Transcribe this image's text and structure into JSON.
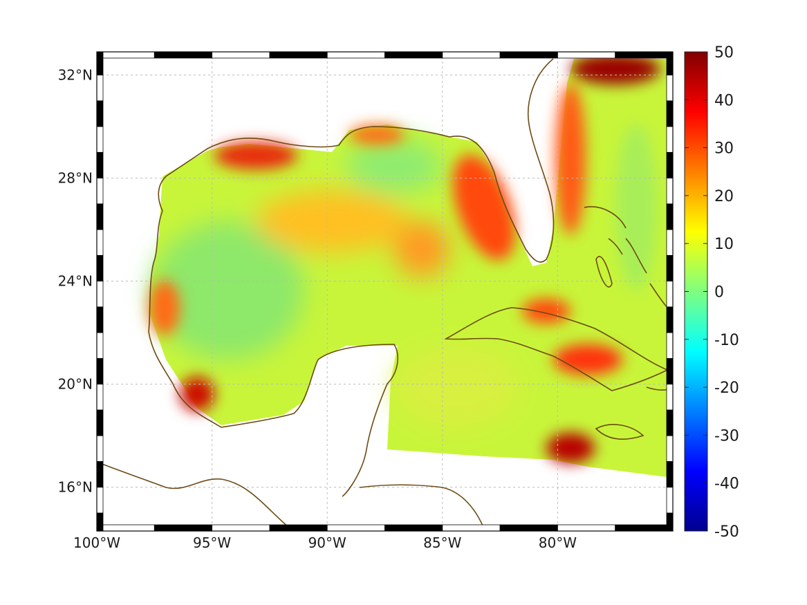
{
  "map": {
    "region": "Gulf of Mexico and western Caribbean",
    "lon_range": [
      -100,
      -75
    ],
    "lat_range": [
      14.3,
      32.9
    ],
    "x_ticks": [
      {
        "lon": -100,
        "label": "100°W"
      },
      {
        "lon": -95,
        "label": "95°W"
      },
      {
        "lon": -90,
        "label": "90°W"
      },
      {
        "lon": -85,
        "label": "85°W"
      },
      {
        "lon": -80,
        "label": "80°W"
      }
    ],
    "y_ticks": [
      {
        "lat": 32,
        "label": "32°N"
      },
      {
        "lat": 28,
        "label": "28°N"
      },
      {
        "lat": 24,
        "label": "24°N"
      },
      {
        "lat": 20,
        "label": "20°N"
      },
      {
        "lat": 16,
        "label": "16°N"
      }
    ],
    "grid": true,
    "coastline_color": "#6b4a12"
  },
  "colorbar": {
    "colormap": "jet",
    "min": -50,
    "max": 50,
    "ticks": [
      {
        "value": 50,
        "label": "50"
      },
      {
        "value": 40,
        "label": "40"
      },
      {
        "value": 30,
        "label": "30"
      },
      {
        "value": 20,
        "label": "20"
      },
      {
        "value": 10,
        "label": "10"
      },
      {
        "value": 0,
        "label": "0"
      },
      {
        "value": -10,
        "label": "-10"
      },
      {
        "value": -20,
        "label": "-20"
      },
      {
        "value": -30,
        "label": "-30"
      },
      {
        "value": -40,
        "label": "-40"
      },
      {
        "value": -50,
        "label": "-50"
      }
    ]
  },
  "field": {
    "background_value": 9,
    "features": [
      {
        "name": "louisiana-shelf-high",
        "lon": -93.5,
        "lat": 29.3,
        "value": 34
      },
      {
        "name": "mississippi-high",
        "lon": -88.3,
        "lat": 29.6,
        "value": 26
      },
      {
        "name": "west-florida-shelf-high",
        "lon": -82.7,
        "lat": 26.8,
        "value": 28
      },
      {
        "name": "central-gulf-high",
        "lon": -89.3,
        "lat": 26.6,
        "value": 20
      },
      {
        "name": "loop-current-high",
        "lon": -85.5,
        "lat": 25.3,
        "value": 20
      },
      {
        "name": "gulf-stream-high",
        "lon": -79.7,
        "lat": 29.5,
        "value": 30
      },
      {
        "name": "carolina-high",
        "lon": -78.0,
        "lat": 32.4,
        "value": 50
      },
      {
        "name": "cuba-north-high",
        "lon": -80.5,
        "lat": 23.2,
        "value": 30
      },
      {
        "name": "cuba-south-high",
        "lon": -79.0,
        "lat": 21.3,
        "value": 30
      },
      {
        "name": "jamaica-west-high",
        "lon": -79.2,
        "lat": 17.3,
        "value": 45
      },
      {
        "name": "bay-of-campeche-high",
        "lon": -95.8,
        "lat": 19.5,
        "value": 38
      },
      {
        "name": "mexico-coast-high",
        "lon": -97.0,
        "lat": 22.5,
        "value": 24
      },
      {
        "name": "western-gulf-low",
        "lon": -93.5,
        "lat": 24.6,
        "value": 4
      },
      {
        "name": "yucatan-basin-low",
        "lon": -84.5,
        "lat": 19.5,
        "value": 7
      }
    ]
  }
}
